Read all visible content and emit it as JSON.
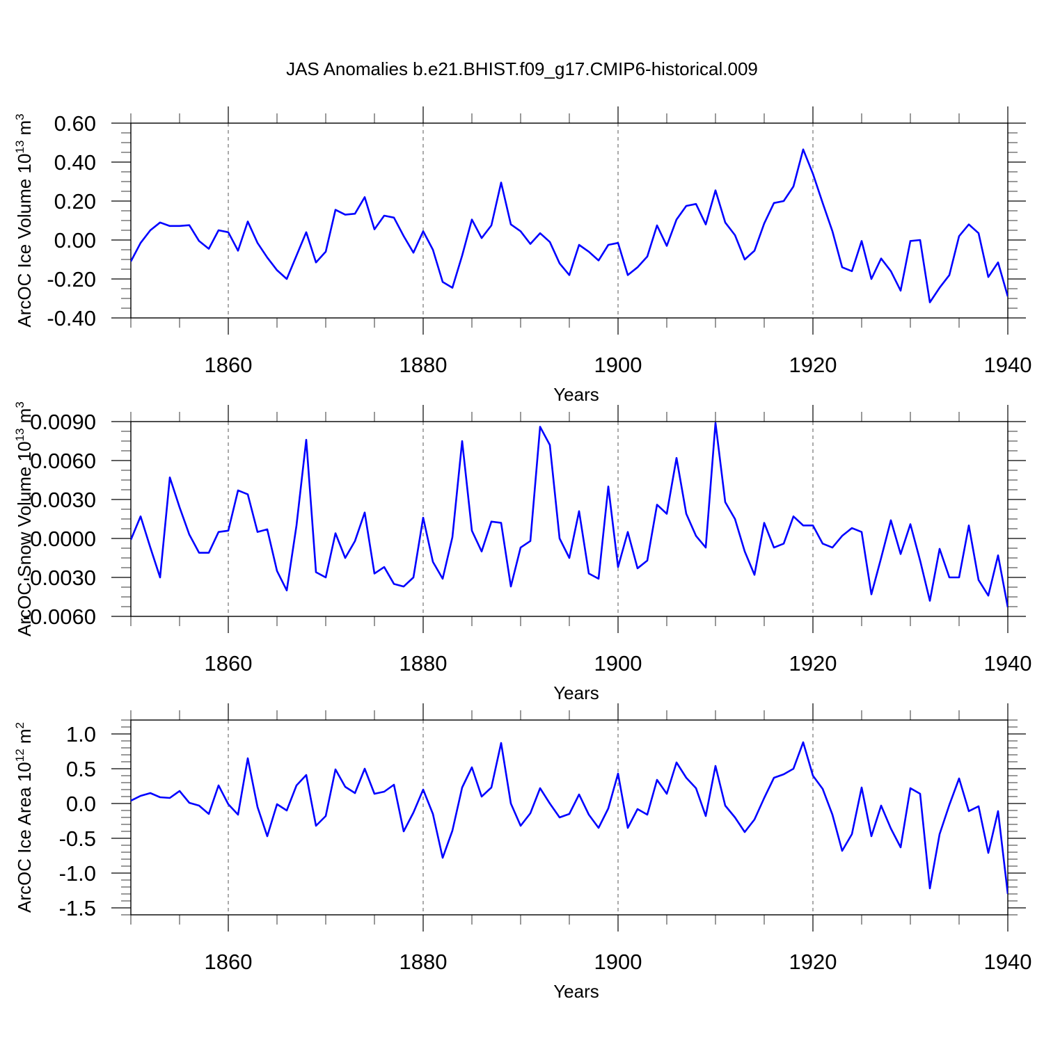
{
  "figure_title": "JAS Anomalies b.e21.BHIST.f09_g17.CMIP6-historical.009",
  "line_color": "#0000ff",
  "chart_data": [
    {
      "type": "line",
      "title": "JAS Anomalies b.e21.BHIST.f09_g17.CMIP6-historical.009",
      "xlabel": "Years",
      "ylabel_main": "ArcOC Ice Volume 10",
      "ylabel_exp": "13",
      "ylabel_post": " m",
      "ylabel_post_exp": "3",
      "xlim": [
        1850,
        1940
      ],
      "ylim": [
        -0.4,
        0.6
      ],
      "x_ticks": [
        1860,
        1880,
        1900,
        1920,
        1940
      ],
      "x_tick_labels": [
        "1860",
        "1880",
        "1900",
        "1920",
        "1940"
      ],
      "y_ticks": [
        -0.4,
        -0.2,
        0.0,
        0.2,
        0.4,
        0.6
      ],
      "y_tick_labels": [
        "-0.40",
        "-0.20",
        "0.00",
        "0.20",
        "0.40",
        "0.60"
      ],
      "y_minor_step": 0.05,
      "x_start": 1850,
      "series": [
        {
          "name": "ice_volume",
          "values": [
            -0.11,
            -0.015,
            0.05,
            0.09,
            0.072,
            0.072,
            0.076,
            -0.005,
            -0.045,
            0.05,
            0.04,
            -0.055,
            0.095,
            -0.015,
            -0.09,
            -0.155,
            -0.2,
            -0.08,
            0.04,
            -0.115,
            -0.06,
            0.155,
            0.13,
            0.135,
            0.22,
            0.055,
            0.125,
            0.115,
            0.02,
            -0.065,
            0.045,
            -0.05,
            -0.215,
            -0.245,
            -0.08,
            0.105,
            0.01,
            0.075,
            0.295,
            0.08,
            0.045,
            -0.02,
            0.035,
            -0.01,
            -0.12,
            -0.18,
            -0.025,
            -0.06,
            -0.105,
            -0.025,
            -0.015,
            -0.18,
            -0.14,
            -0.085,
            0.075,
            -0.03,
            0.105,
            0.175,
            0.185,
            0.08,
            0.255,
            0.09,
            0.025,
            -0.1,
            -0.055,
            0.085,
            0.19,
            0.2,
            0.275,
            0.465,
            0.34,
            0.19,
            0.045,
            -0.14,
            -0.16,
            -0.005,
            -0.2,
            -0.095,
            -0.16,
            -0.26,
            -0.005,
            0.0,
            -0.32,
            -0.245,
            -0.18,
            0.02,
            0.08,
            0.035,
            -0.19,
            -0.115,
            -0.29
          ]
        }
      ]
    },
    {
      "type": "line",
      "xlabel": "Years",
      "ylabel_main": "ArcOC Snow Volume 10",
      "ylabel_exp": "13",
      "ylabel_post": " m",
      "ylabel_post_exp": "3",
      "xlim": [
        1850,
        1940
      ],
      "ylim": [
        -0.006,
        0.009
      ],
      "x_ticks": [
        1860,
        1880,
        1900,
        1920,
        1940
      ],
      "x_tick_labels": [
        "1860",
        "1880",
        "1900",
        "1920",
        "1940"
      ],
      "y_ticks": [
        -0.006,
        -0.003,
        0.0,
        0.003,
        0.006,
        0.009
      ],
      "y_tick_labels": [
        "-0.0060",
        "-0.0030",
        "0.0000",
        "0.0030",
        "0.0060",
        "0.0090"
      ],
      "y_minor_step": 0.00075,
      "x_start": 1850,
      "series": [
        {
          "name": "snow_volume",
          "values": [
            -0.0001,
            0.0017,
            -0.0007,
            -0.003,
            0.0047,
            0.0024,
            0.0003,
            -0.0011,
            -0.0011,
            0.0005,
            0.0006,
            0.0037,
            0.0034,
            0.0005,
            0.0007,
            -0.0025,
            -0.004,
            0.001,
            0.0076,
            -0.0026,
            -0.003,
            0.0004,
            -0.0015,
            -0.0002,
            0.002,
            -0.0027,
            -0.0022,
            -0.0035,
            -0.0037,
            -0.003,
            0.0016,
            -0.0018,
            -0.0031,
            0.0001,
            0.0075,
            0.0006,
            -0.001,
            0.0013,
            0.0012,
            -0.0037,
            -0.0007,
            -0.0002,
            0.0086,
            0.0072,
            0.0,
            -0.0015,
            0.0021,
            -0.0027,
            -0.0031,
            0.004,
            -0.0022,
            0.0005,
            -0.0023,
            -0.0017,
            0.0026,
            0.0019,
            0.0062,
            0.0019,
            0.0002,
            -0.0007,
            0.0089,
            0.0028,
            0.0015,
            -0.001,
            -0.0028,
            0.0012,
            -0.0007,
            -0.0004,
            0.0017,
            0.001,
            0.001,
            -0.0004,
            -0.0007,
            0.0002,
            0.0008,
            0.0005,
            -0.0043,
            -0.0015,
            0.0014,
            -0.0012,
            0.0011,
            -0.0017,
            -0.0048,
            -0.0008,
            -0.003,
            -0.003,
            0.001,
            -0.0032,
            -0.0044,
            -0.0013,
            -0.0053
          ]
        }
      ]
    },
    {
      "type": "line",
      "xlabel": "Years",
      "ylabel_main": "ArcOC Ice Area 10",
      "ylabel_exp": "12",
      "ylabel_post": " m",
      "ylabel_post_exp": "2",
      "xlim": [
        1850,
        1940
      ],
      "ylim": [
        -1.6,
        1.2
      ],
      "x_ticks": [
        1860,
        1880,
        1900,
        1920,
        1940
      ],
      "x_tick_labels": [
        "1860",
        "1880",
        "1900",
        "1920",
        "1940"
      ],
      "y_ticks": [
        -1.5,
        -1.0,
        -0.5,
        0.0,
        0.5,
        1.0
      ],
      "y_tick_labels": [
        "-1.5",
        "-1.0",
        "-0.5",
        "0.0",
        "0.5",
        "1.0"
      ],
      "y_minor_step": 0.1,
      "x_start": 1850,
      "series": [
        {
          "name": "ice_area",
          "values": [
            0.04,
            0.11,
            0.15,
            0.09,
            0.08,
            0.18,
            0.01,
            -0.03,
            -0.15,
            0.26,
            -0.01,
            -0.16,
            0.65,
            -0.05,
            -0.47,
            -0.01,
            -0.1,
            0.26,
            0.41,
            -0.32,
            -0.18,
            0.49,
            0.24,
            0.15,
            0.5,
            0.14,
            0.17,
            0.27,
            -0.4,
            -0.13,
            0.2,
            -0.15,
            -0.78,
            -0.39,
            0.23,
            0.52,
            0.1,
            0.23,
            0.87,
            0.0,
            -0.32,
            -0.14,
            0.22,
            0.0,
            -0.2,
            -0.15,
            0.13,
            -0.16,
            -0.35,
            -0.07,
            0.43,
            -0.35,
            -0.08,
            -0.16,
            0.34,
            0.14,
            0.59,
            0.37,
            0.22,
            -0.18,
            0.54,
            -0.03,
            -0.2,
            -0.41,
            -0.23,
            0.08,
            0.37,
            0.42,
            0.5,
            0.88,
            0.4,
            0.21,
            -0.16,
            -0.68,
            -0.44,
            0.23,
            -0.47,
            -0.03,
            -0.36,
            -0.63,
            0.22,
            0.14,
            -1.22,
            -0.44,
            -0.02,
            0.36,
            -0.11,
            -0.04,
            -0.71,
            -0.11,
            -1.3
          ]
        }
      ]
    }
  ]
}
